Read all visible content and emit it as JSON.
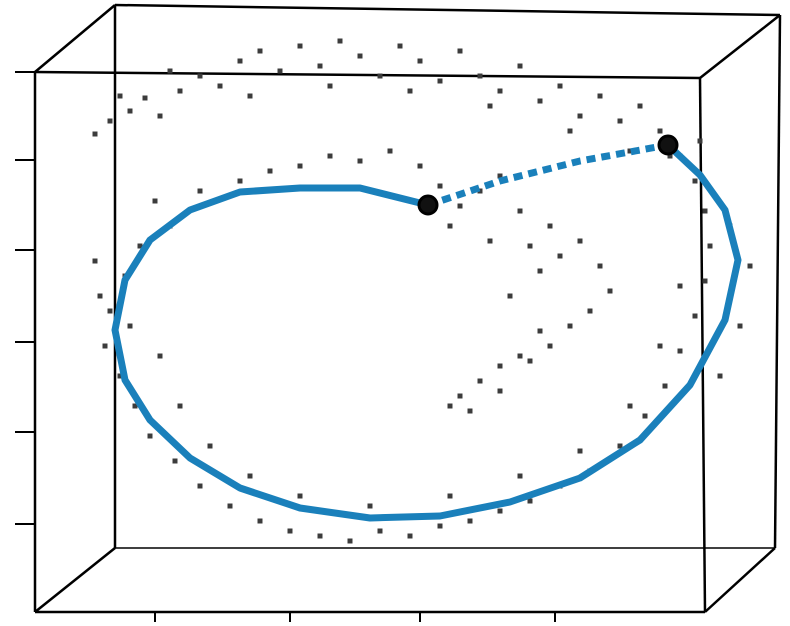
{
  "chart_data": {
    "type": "scatter",
    "xlim": [
      0,
      79
    ],
    "ylim": [
      0,
      62.6
    ],
    "xticks": [
      15.5,
      29,
      42,
      55.5
    ],
    "yticks": [
      10.2,
      19.4,
      28.4,
      37.6,
      46.6,
      55.4
    ],
    "series": [
      {
        "color": "#3c3c3c",
        "style": "points",
        "x": [
          9.5,
          11,
          13,
          14.5,
          16,
          18,
          20,
          22,
          24,
          26,
          28,
          30,
          32,
          34,
          36,
          38,
          40,
          42,
          44,
          46,
          48,
          50,
          52,
          54,
          56,
          58,
          60,
          62,
          64,
          66,
          68,
          70,
          12,
          17,
          25,
          33,
          41,
          49,
          57,
          63,
          24,
          27,
          30,
          33,
          36,
          39,
          42,
          44,
          46,
          48,
          50,
          52,
          55,
          58,
          60,
          61,
          59,
          57,
          54,
          52,
          50,
          48,
          46,
          45,
          47,
          50,
          53,
          55,
          51,
          54,
          56,
          49,
          45,
          43,
          53,
          14,
          12.5,
          11,
          10.5,
          12,
          13.5,
          15,
          17.5,
          20,
          23,
          26,
          29,
          32,
          35,
          38,
          41,
          44,
          47,
          50,
          53,
          56,
          59,
          62,
          64.5,
          66.5,
          68,
          69.5,
          70.5,
          71,
          70.5,
          69.5,
          67,
          73,
          75,
          74,
          72,
          13,
          16,
          18,
          21,
          25,
          30,
          37,
          45,
          52,
          58,
          63,
          66,
          68,
          17,
          15.5,
          20,
          10,
          9.5
        ],
        "y": [
          49.2,
          50.5,
          51.5,
          52.8,
          51,
          53.5,
          55,
          54,
          56.5,
          57.5,
          55.5,
          58,
          56,
          58.5,
          57,
          55,
          58,
          56.5,
          54.5,
          57.5,
          55,
          53.5,
          56,
          52.5,
          54,
          51,
          53,
          50.5,
          52,
          49.5,
          47,
          48.5,
          53,
          55.5,
          53,
          54,
          53.5,
          52,
          49.5,
          47.5,
          44.5,
          45.5,
          46,
          47,
          46.5,
          47.5,
          46,
          44,
          42,
          43.5,
          45,
          41.5,
          40,
          38.5,
          36,
          33.5,
          31.5,
          30,
          29.5,
          27,
          26,
          24.5,
          23,
          22,
          21.5,
          23.5,
          26.5,
          28,
          33,
          35.5,
          37,
          38.5,
          40,
          42,
          38,
          38,
          35,
          31.5,
          28,
          25,
          22,
          19,
          16.5,
          14,
          12,
          10.5,
          9.5,
          9,
          8.5,
          9.5,
          9,
          10,
          10.5,
          11.5,
          12.5,
          14,
          15.5,
          18,
          21,
          24,
          27.5,
          31,
          34.5,
          38,
          41.5,
          44.5,
          47,
          40,
          36,
          30,
          25,
          30,
          27,
          22,
          18,
          15,
          13,
          12,
          13,
          15,
          17.5,
          22,
          28,
          34,
          40,
          42.5,
          43.5,
          33,
          36.5
        ]
      },
      {
        "color": "#1a80bb",
        "style": "solid",
        "x": [
          42.8,
          36,
          30,
          24,
          19,
          15,
          12.5,
          11.5,
          12.5,
          15,
          19,
          24,
          30,
          37,
          44,
          51,
          58,
          64,
          69,
          72.5,
          73.8,
          72.5,
          70,
          66.8
        ],
        "y": [
          42.1,
          43.8,
          43.8,
          43.4,
          41.6,
          38.6,
          34.6,
          29.6,
          24.6,
          20.6,
          16.8,
          13.8,
          11.8,
          10.8,
          11,
          12.4,
          14.8,
          18.6,
          24.1,
          30.6,
          36.6,
          41.6,
          45.1,
          48.1
        ]
      },
      {
        "color": "#1a80bb",
        "style": "dashed",
        "x": [
          42.8,
          50,
          58,
          66.8
        ],
        "y": [
          42.1,
          44.5,
          46.5,
          48.1
        ]
      },
      {
        "color": "#000000",
        "style": "endpoints",
        "x": [
          42.8,
          66.8
        ],
        "y": [
          42.1,
          48.1
        ]
      }
    ]
  }
}
